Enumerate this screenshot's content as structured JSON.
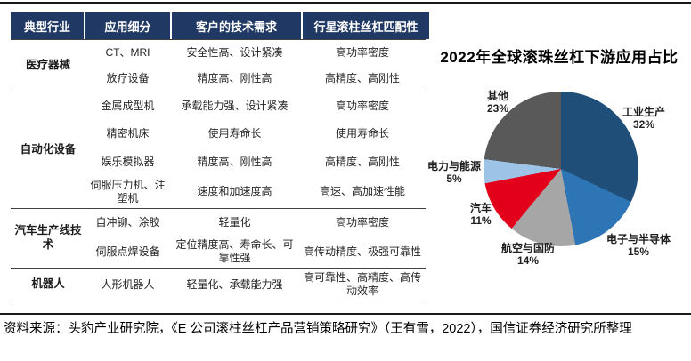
{
  "colors": {
    "header_bg": "#1F3864",
    "divider": "#404040"
  },
  "table": {
    "headers": [
      "典型行业",
      "应用细分",
      "客户的技术需求",
      "行星滚柱丝杠匹配性"
    ],
    "sections": [
      {
        "industry": "医疗器械",
        "rows": [
          [
            "CT、MRI",
            "安全性高、设计紧凑",
            "高功率密度"
          ],
          [
            "放疗设备",
            "精度高、刚性高",
            "高精度、高刚性"
          ]
        ]
      },
      {
        "industry": "自动化设备",
        "rows": [
          [
            "金属成型机",
            "承载能力强、设计紧凑",
            "高功率密度"
          ],
          [
            "精密机床",
            "使用寿命长",
            "使用寿命长"
          ],
          [
            "娱乐模拟器",
            "精度高、刚性高",
            "高精度、高刚性"
          ],
          [
            "伺服压力机、注塑机",
            "速度和加速度高",
            "高速、高加速性能"
          ]
        ]
      },
      {
        "industry": "汽车生产线技术",
        "rows": [
          [
            "自冲铆、涂胶",
            "轻量化",
            "高功率密度"
          ],
          [
            "伺服点焊设备",
            "定位精度高、寿命长、可靠性强",
            "高传动精度、极强可靠性"
          ]
        ]
      },
      {
        "industry": "机器人",
        "rows": [
          [
            "人形机器人",
            "轻量化、承载能力强",
            "高可靠性、高精度、高传动效率"
          ]
        ]
      }
    ]
  },
  "chart_data": {
    "type": "pie",
    "title": "2022年全球滚珠丝杠下游应用占比",
    "start_angle_deg": 0,
    "direction": "clockwise",
    "legend_position": "none (direct labels around pie)",
    "slices": [
      {
        "label": "工业生产",
        "value": 32,
        "pct_label": "32%",
        "color": "#1F4E79"
      },
      {
        "label": "电子与半导体",
        "value": 15,
        "pct_label": "15%",
        "color": "#2E75B6"
      },
      {
        "label": "航空与国防",
        "value": 14,
        "pct_label": "14%",
        "color": "#A6A6A6"
      },
      {
        "label": "汽车",
        "value": 11,
        "pct_label": "11%",
        "color": "#E2001A"
      },
      {
        "label": "电力与能源",
        "value": 5,
        "pct_label": "5%",
        "color": "#9DC3E6"
      },
      {
        "label": "其他",
        "value": 23,
        "pct_label": "23%",
        "color": "#595959"
      }
    ]
  },
  "footer": {
    "source_text": "资料来源：头豹产业研究院，《E 公司滚柱丝杠产品营销策略研究》（王有雪，2022），国信证券经济研究所整理"
  }
}
